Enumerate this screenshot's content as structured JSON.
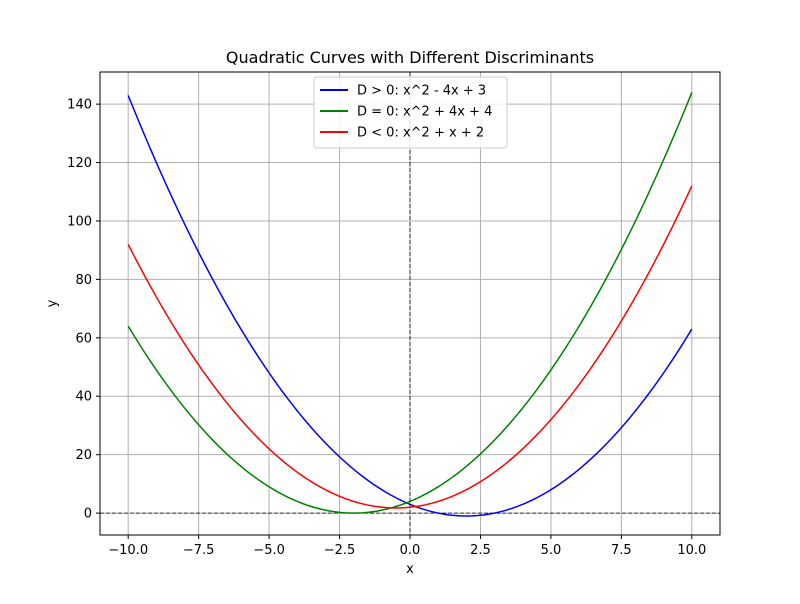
{
  "chart_data": {
    "type": "line",
    "title": "Quadratic Curves with Different Discriminants",
    "xlabel": "x",
    "ylabel": "y",
    "xlim": [
      -11,
      11
    ],
    "ylim": [
      -7.5,
      151
    ],
    "x_ticks": [
      -10,
      -7.5,
      -5,
      -2.5,
      0,
      2.5,
      5,
      7.5,
      10
    ],
    "x_tick_labels": [
      "−10.0",
      "−7.5",
      "−5.0",
      "−2.5",
      "0.0",
      "2.5",
      "5.0",
      "7.5",
      "10.0"
    ],
    "y_ticks": [
      0,
      20,
      40,
      60,
      80,
      100,
      120,
      140
    ],
    "y_tick_labels": [
      "0",
      "20",
      "40",
      "60",
      "80",
      "100",
      "120",
      "140"
    ],
    "grid": true,
    "legend_position": "top-center",
    "reference_lines": {
      "y0": true,
      "x0": true,
      "style": "dashed",
      "color": "#000000"
    },
    "series": [
      {
        "name": "D > 0: x^2 - 4x + 3",
        "color": "#0000ff",
        "coefficients": [
          1,
          -4,
          3
        ],
        "x_range": [
          -10,
          10
        ],
        "sample_points": [
          [
            -10,
            143
          ],
          [
            -5,
            48
          ],
          [
            0,
            3
          ],
          [
            2,
            -1
          ],
          [
            5,
            8
          ],
          [
            10,
            63
          ]
        ]
      },
      {
        "name": "D = 0: x^2 + 4x + 4",
        "color": "#008000",
        "coefficients": [
          1,
          4,
          4
        ],
        "x_range": [
          -10,
          10
        ],
        "sample_points": [
          [
            -10,
            64
          ],
          [
            -5,
            9
          ],
          [
            -2,
            0
          ],
          [
            0,
            4
          ],
          [
            5,
            49
          ],
          [
            10,
            144
          ]
        ]
      },
      {
        "name": "D < 0: x^2 + x + 2",
        "color": "#ff0000",
        "coefficients": [
          1,
          1,
          2
        ],
        "x_range": [
          -10,
          10
        ],
        "sample_points": [
          [
            -10,
            92
          ],
          [
            -5,
            22
          ],
          [
            -0.5,
            1.75
          ],
          [
            0,
            2
          ],
          [
            5,
            32
          ],
          [
            10,
            112
          ]
        ]
      }
    ]
  }
}
